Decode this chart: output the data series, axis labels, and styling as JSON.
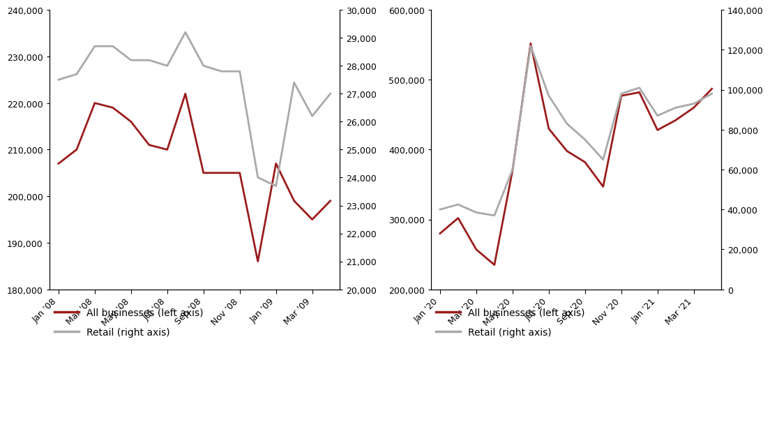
{
  "left": {
    "x_labels": [
      "Jan '08",
      "Mar '08",
      "May '08",
      "Jul '08",
      "Sep '08",
      "Nov '08",
      "Jan '09",
      "Mar '09"
    ],
    "all_biz": [
      207000,
      210000,
      220000,
      219000,
      216000,
      211000,
      210000,
      222000,
      205000,
      205000,
      205000,
      186000,
      207000,
      199000,
      195000,
      199000
    ],
    "retail": [
      27500,
      27700,
      28700,
      28700,
      28200,
      28200,
      28000,
      29200,
      28000,
      27800,
      27800,
      24000,
      23700,
      27400,
      26200,
      27000
    ],
    "ylim_left": [
      180000,
      240000
    ],
    "ylim_right": [
      20000,
      30000
    ],
    "yticks_left": [
      180000,
      190000,
      200000,
      210000,
      220000,
      230000,
      240000
    ],
    "yticks_right": [
      20000,
      21000,
      22000,
      23000,
      24000,
      25000,
      26000,
      27000,
      28000,
      29000,
      30000
    ],
    "n_points": 16
  },
  "right": {
    "x_labels": [
      "Jan '20",
      "Mar '20",
      "May '20",
      "Jul '20",
      "Sep '20",
      "Nov '20",
      "Jan '21",
      "Mar '21"
    ],
    "all_biz": [
      280000,
      302000,
      257000,
      235000,
      370000,
      552000,
      430000,
      398000,
      382000,
      347000,
      477000,
      482000,
      428000,
      442000,
      460000,
      487000
    ],
    "retail": [
      40000,
      42500,
      38500,
      37000,
      60000,
      122000,
      97000,
      83000,
      75000,
      65000,
      98000,
      101000,
      87000,
      91000,
      93000,
      98000
    ],
    "ylim_left": [
      200000,
      600000
    ],
    "ylim_right": [
      0,
      140000
    ],
    "yticks_left": [
      200000,
      300000,
      400000,
      500000,
      600000
    ],
    "yticks_right": [
      0,
      20000,
      40000,
      60000,
      80000,
      100000,
      120000,
      140000
    ],
    "n_points": 16
  },
  "dark_red": "#9B1C1C",
  "gray": "#A9A9A9",
  "line_width": 2.0,
  "tick_label_fontsize": 9,
  "legend_fontsize": 10
}
